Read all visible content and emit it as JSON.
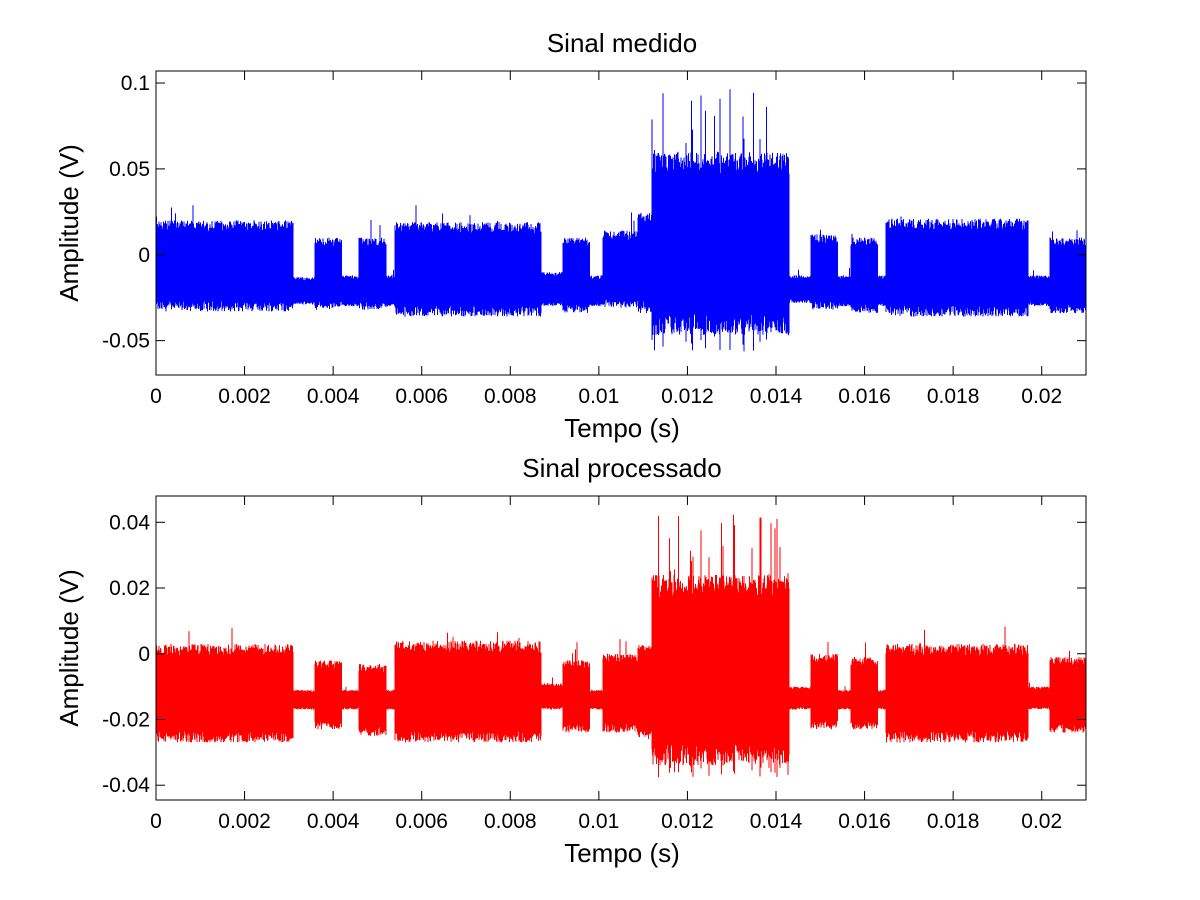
{
  "figure": {
    "background": "#ffffff"
  },
  "chart_data": [
    {
      "type": "line",
      "title": "Sinal medido",
      "xlabel": "Tempo (s)",
      "ylabel": "Amplitude (V)",
      "xlim": [
        0,
        0.021
      ],
      "ylim": [
        -0.07,
        0.107
      ],
      "grid": false,
      "color": "#0000ff",
      "x_ticks": [
        0,
        0.002,
        0.004,
        0.006,
        0.008,
        0.01,
        0.012,
        0.014,
        0.016,
        0.018,
        0.02
      ],
      "x_tick_labels": [
        "0",
        "0.002",
        "0.004",
        "0.006",
        "0.008",
        "0.01",
        "0.012",
        "0.014",
        "0.016",
        "0.018",
        "0.02"
      ],
      "y_ticks": [
        -0.05,
        0,
        0.05,
        0.1
      ],
      "y_tick_labels": [
        "-0.05",
        "0",
        "0.05",
        "0.1"
      ],
      "series": [
        {
          "segments": [
            {
              "t0": 0.0,
              "t1": 0.0031,
              "low": -0.033,
              "high": 0.02
            },
            {
              "t0": 0.0031,
              "t1": 0.0036,
              "low": -0.029,
              "high": -0.013
            },
            {
              "t0": 0.0036,
              "t1": 0.0042,
              "low": -0.032,
              "high": 0.01
            },
            {
              "t0": 0.0042,
              "t1": 0.0046,
              "low": -0.03,
              "high": -0.012
            },
            {
              "t0": 0.0046,
              "t1": 0.0052,
              "low": -0.032,
              "high": 0.01
            },
            {
              "t0": 0.0052,
              "t1": 0.0054,
              "low": -0.03,
              "high": -0.012
            },
            {
              "t0": 0.0054,
              "t1": 0.0087,
              "low": -0.036,
              "high": 0.019
            },
            {
              "t0": 0.0087,
              "t1": 0.0092,
              "low": -0.03,
              "high": -0.01
            },
            {
              "t0": 0.0092,
              "t1": 0.0098,
              "low": -0.034,
              "high": 0.01
            },
            {
              "t0": 0.0098,
              "t1": 0.0101,
              "low": -0.03,
              "high": -0.012
            },
            {
              "t0": 0.0101,
              "t1": 0.0109,
              "low": -0.031,
              "high": 0.014
            },
            {
              "t0": 0.0109,
              "t1": 0.0112,
              "low": -0.034,
              "high": 0.025
            },
            {
              "t0": 0.0112,
              "t1": 0.0143,
              "low": -0.047,
              "high": 0.06,
              "peak_high": 0.098,
              "peak_low": -0.064
            },
            {
              "t0": 0.0143,
              "t1": 0.0148,
              "low": -0.028,
              "high": -0.012
            },
            {
              "t0": 0.0148,
              "t1": 0.0154,
              "low": -0.032,
              "high": 0.012
            },
            {
              "t0": 0.0154,
              "t1": 0.0157,
              "low": -0.03,
              "high": -0.012
            },
            {
              "t0": 0.0157,
              "t1": 0.0163,
              "low": -0.034,
              "high": 0.01
            },
            {
              "t0": 0.0163,
              "t1": 0.0165,
              "low": -0.03,
              "high": -0.012
            },
            {
              "t0": 0.0165,
              "t1": 0.0197,
              "low": -0.036,
              "high": 0.021
            },
            {
              "t0": 0.0197,
              "t1": 0.0202,
              "low": -0.03,
              "high": -0.012
            },
            {
              "t0": 0.0202,
              "t1": 0.021,
              "low": -0.034,
              "high": 0.01
            }
          ]
        }
      ]
    },
    {
      "type": "line",
      "title": "Sinal processado",
      "xlabel": "Tempo (s)",
      "ylabel": "Amplitude (V)",
      "xlim": [
        0,
        0.021
      ],
      "ylim": [
        -0.0445,
        0.048
      ],
      "grid": false,
      "color": "#ff0000",
      "x_ticks": [
        0,
        0.002,
        0.004,
        0.006,
        0.008,
        0.01,
        0.012,
        0.014,
        0.016,
        0.018,
        0.02
      ],
      "x_tick_labels": [
        "0",
        "0.002",
        "0.004",
        "0.006",
        "0.008",
        "0.01",
        "0.012",
        "0.014",
        "0.016",
        "0.018",
        "0.02"
      ],
      "y_ticks": [
        -0.04,
        -0.02,
        0,
        0.02,
        0.04
      ],
      "y_tick_labels": [
        "-0.04",
        "-0.02",
        "0",
        "0.02",
        "0.04"
      ],
      "series": [
        {
          "segments": [
            {
              "t0": 0.0,
              "t1": 0.0031,
              "low": -0.027,
              "high": 0.003
            },
            {
              "t0": 0.0031,
              "t1": 0.0036,
              "low": -0.017,
              "high": -0.011
            },
            {
              "t0": 0.0036,
              "t1": 0.0042,
              "low": -0.023,
              "high": -0.002
            },
            {
              "t0": 0.0042,
              "t1": 0.0046,
              "low": -0.017,
              "high": -0.011
            },
            {
              "t0": 0.0046,
              "t1": 0.0052,
              "low": -0.025,
              "high": -0.003
            },
            {
              "t0": 0.0052,
              "t1": 0.0054,
              "low": -0.017,
              "high": -0.011
            },
            {
              "t0": 0.0054,
              "t1": 0.0087,
              "low": -0.027,
              "high": 0.004
            },
            {
              "t0": 0.0087,
              "t1": 0.0092,
              "low": -0.017,
              "high": -0.009
            },
            {
              "t0": 0.0092,
              "t1": 0.0098,
              "low": -0.024,
              "high": -0.002
            },
            {
              "t0": 0.0098,
              "t1": 0.0101,
              "low": -0.017,
              "high": -0.011
            },
            {
              "t0": 0.0101,
              "t1": 0.0109,
              "low": -0.024,
              "high": 0.0
            },
            {
              "t0": 0.0109,
              "t1": 0.0112,
              "low": -0.026,
              "high": 0.003
            },
            {
              "t0": 0.0112,
              "t1": 0.0143,
              "low": -0.034,
              "high": 0.024,
              "peak_high": 0.043,
              "peak_low": -0.04
            },
            {
              "t0": 0.0143,
              "t1": 0.0148,
              "low": -0.017,
              "high": -0.01
            },
            {
              "t0": 0.0148,
              "t1": 0.0154,
              "low": -0.023,
              "high": 0.0
            },
            {
              "t0": 0.0154,
              "t1": 0.0157,
              "low": -0.017,
              "high": -0.011
            },
            {
              "t0": 0.0157,
              "t1": 0.0163,
              "low": -0.023,
              "high": -0.001
            },
            {
              "t0": 0.0163,
              "t1": 0.0165,
              "low": -0.017,
              "high": -0.011
            },
            {
              "t0": 0.0165,
              "t1": 0.0197,
              "low": -0.027,
              "high": 0.003
            },
            {
              "t0": 0.0197,
              "t1": 0.0202,
              "low": -0.017,
              "high": -0.01
            },
            {
              "t0": 0.0202,
              "t1": 0.021,
              "low": -0.024,
              "high": -0.001
            }
          ]
        }
      ]
    }
  ]
}
